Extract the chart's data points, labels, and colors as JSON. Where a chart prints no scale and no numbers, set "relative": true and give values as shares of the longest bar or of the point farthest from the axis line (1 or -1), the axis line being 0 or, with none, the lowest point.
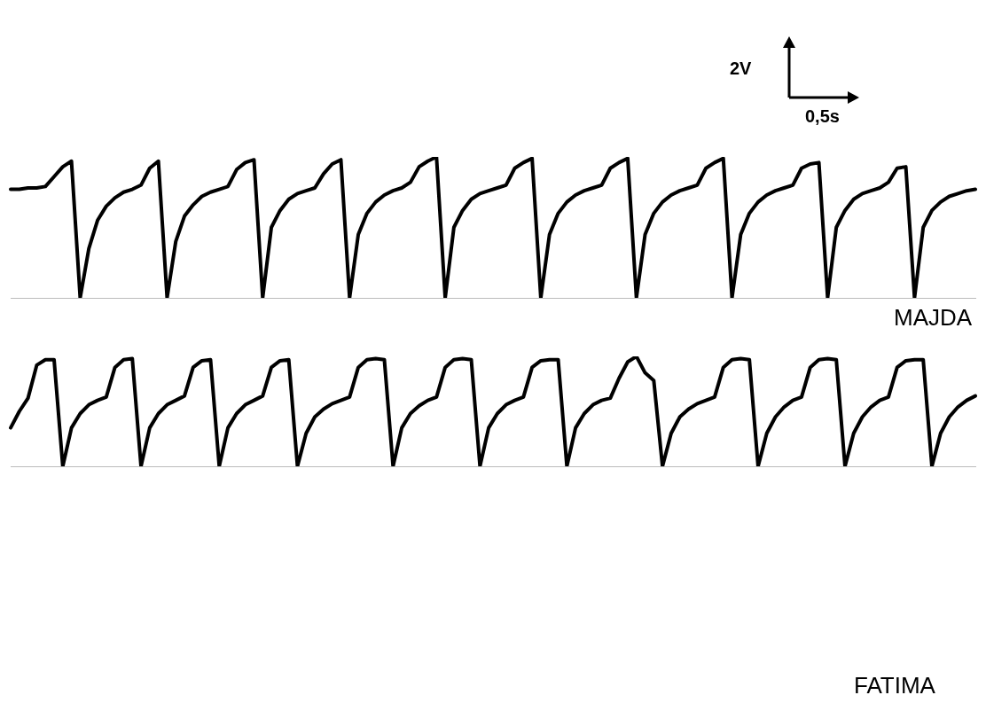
{
  "chart_data": [
    {
      "type": "line",
      "relative": true,
      "marker": "none",
      "annotations": [
        "2V",
        "0,5s"
      ],
      "categories": [
        null,
        null,
        null,
        null,
        null,
        null,
        null,
        null,
        null,
        null,
        null,
        null,
        null,
        null,
        null,
        null,
        null,
        null,
        null,
        null,
        null,
        null,
        null,
        null,
        null,
        null,
        null,
        null,
        null,
        null,
        null,
        null,
        null,
        null,
        null,
        null,
        null,
        null,
        null,
        null,
        null,
        null,
        null,
        null,
        null,
        null,
        null,
        null,
        null,
        null,
        null,
        null,
        null,
        null,
        null,
        null,
        null,
        null,
        null,
        null,
        null,
        null,
        null,
        null,
        null,
        null,
        null,
        null,
        null,
        null,
        null,
        null,
        null,
        null,
        null,
        null,
        null,
        null,
        null,
        null,
        null,
        null,
        null,
        null,
        null,
        null,
        null,
        null,
        null,
        null,
        null,
        null,
        null,
        null,
        null,
        null,
        null,
        null,
        null,
        null,
        null,
        null,
        null,
        null,
        null,
        null,
        null,
        null,
        null,
        null,
        null,
        null
      ],
      "series": [
        {
          "name": "MAJDA",
          "color": "#000000",
          "values": [
            0.77,
            0.77,
            0.78,
            0.78,
            0.79,
            0.86,
            0.93,
            0.97,
            0,
            0.35,
            0.55,
            0.65,
            0.71,
            0.75,
            0.77,
            0.8,
            0.92,
            0.97,
            0,
            0.4,
            0.58,
            0.66,
            0.72,
            0.75,
            0.77,
            0.79,
            0.91,
            0.96,
            0.98,
            0,
            0.5,
            0.62,
            0.7,
            0.74,
            0.76,
            0.78,
            0.88,
            0.95,
            0.98,
            0,
            0.45,
            0.6,
            0.68,
            0.73,
            0.76,
            0.78,
            0.82,
            0.93,
            0.97,
            1,
            0,
            0.5,
            0.62,
            0.7,
            0.74,
            0.76,
            0.78,
            0.8,
            0.92,
            0.96,
            0.99,
            0,
            0.45,
            0.6,
            0.68,
            0.73,
            0.76,
            0.78,
            0.8,
            0.92,
            0.96,
            0.99,
            0,
            0.45,
            0.6,
            0.68,
            0.73,
            0.76,
            0.78,
            0.8,
            0.92,
            0.96,
            0.99,
            0,
            0.45,
            0.6,
            0.68,
            0.73,
            0.76,
            0.78,
            0.8,
            0.92,
            0.95,
            0.96,
            0,
            0.5,
            0.62,
            0.7,
            0.74,
            0.76,
            0.78,
            0.82,
            0.92,
            0.93,
            0,
            0.5,
            0.62,
            0.68,
            0.72,
            0.74,
            0.76,
            0.77
          ]
        }
      ]
    },
    {
      "type": "line",
      "relative": true,
      "marker": "none",
      "categories": [
        null,
        null,
        null,
        null,
        null,
        null,
        null,
        null,
        null,
        null,
        null,
        null,
        null,
        null,
        null,
        null,
        null,
        null,
        null,
        null,
        null,
        null,
        null,
        null,
        null,
        null,
        null,
        null,
        null,
        null,
        null,
        null,
        null,
        null,
        null,
        null,
        null,
        null,
        null,
        null,
        null,
        null,
        null,
        null,
        null,
        null,
        null,
        null,
        null,
        null,
        null,
        null,
        null,
        null,
        null,
        null,
        null,
        null,
        null,
        null,
        null,
        null,
        null,
        null,
        null,
        null,
        null,
        null,
        null,
        null,
        null,
        null,
        null,
        null,
        null,
        null,
        null,
        null,
        null,
        null,
        null,
        null,
        null,
        null,
        null,
        null,
        null,
        null,
        null,
        null,
        null,
        null,
        null,
        null,
        null,
        null,
        null,
        null,
        null,
        null,
        null,
        null,
        null,
        null,
        null,
        null,
        null,
        null,
        null,
        null,
        null,
        null
      ],
      "series": [
        {
          "name": "FATIMA",
          "color": "#000000",
          "values": [
            0.35,
            0.5,
            0.62,
            0.92,
            0.97,
            0.97,
            0,
            0.35,
            0.48,
            0.56,
            0.6,
            0.63,
            0.9,
            0.97,
            0.98,
            0,
            0.35,
            0.48,
            0.56,
            0.6,
            0.64,
            0.9,
            0.96,
            0.97,
            0,
            0.35,
            0.48,
            0.56,
            0.6,
            0.64,
            0.9,
            0.96,
            0.97,
            0,
            0.3,
            0.45,
            0.52,
            0.57,
            0.6,
            0.63,
            0.9,
            0.97,
            0.98,
            0.97,
            0,
            0.35,
            0.48,
            0.55,
            0.6,
            0.63,
            0.9,
            0.97,
            0.98,
            0.97,
            0,
            0.35,
            0.48,
            0.56,
            0.6,
            0.63,
            0.9,
            0.96,
            0.97,
            0.97,
            0,
            0.35,
            0.48,
            0.56,
            0.6,
            0.62,
            0.8,
            0.95,
            1,
            0.85,
            0.78,
            0,
            0.3,
            0.45,
            0.52,
            0.57,
            0.6,
            0.63,
            0.9,
            0.97,
            0.98,
            0.97,
            0,
            0.3,
            0.45,
            0.54,
            0.6,
            0.63,
            0.9,
            0.97,
            0.98,
            0.97,
            0,
            0.3,
            0.45,
            0.54,
            0.6,
            0.63,
            0.9,
            0.96,
            0.97,
            0.97,
            0,
            0.3,
            0.45,
            0.54,
            0.6,
            0.64
          ]
        }
      ]
    }
  ]
}
